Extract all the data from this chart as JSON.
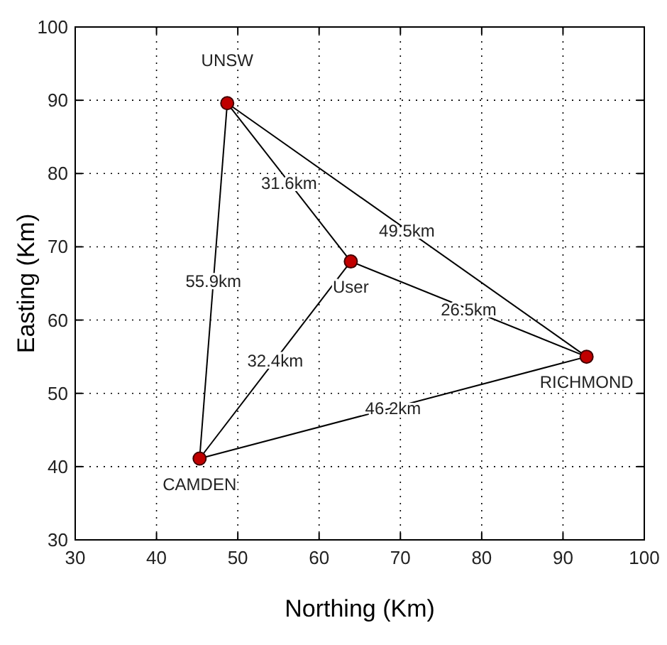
{
  "chart_data": {
    "type": "scatter",
    "xlabel": "Northing (Km)",
    "ylabel": "Easting (Km)",
    "xlim": [
      30,
      100
    ],
    "xticks": [
      30,
      40,
      50,
      60,
      70,
      80,
      90,
      100
    ],
    "ylim": [
      30,
      100
    ],
    "yticks": [
      30,
      40,
      50,
      60,
      70,
      80,
      90,
      100
    ],
    "grid": true,
    "series": [
      {
        "type": "line",
        "color": "#000000",
        "x": [
          48.7,
          92.9
        ],
        "values": [
          89.6,
          55.0
        ]
      },
      {
        "type": "line",
        "color": "#000000",
        "x": [
          92.9,
          45.3
        ],
        "values": [
          55.0,
          41.1
        ]
      },
      {
        "type": "line",
        "color": "#000000",
        "x": [
          45.3,
          48.7
        ],
        "values": [
          41.1,
          89.6
        ]
      },
      {
        "type": "line",
        "color": "#000000",
        "x": [
          48.7,
          63.9
        ],
        "values": [
          89.6,
          68.0
        ]
      },
      {
        "type": "line",
        "color": "#000000",
        "x": [
          92.9,
          63.9
        ],
        "values": [
          55.0,
          68.0
        ]
      },
      {
        "type": "line",
        "color": "#000000",
        "x": [
          45.3,
          63.9
        ],
        "values": [
          41.1,
          68.0
        ]
      },
      {
        "color": "#c00000",
        "marker": "circle",
        "x": [
          48.7,
          63.9,
          92.9,
          45.3
        ],
        "values": [
          89.6,
          68.0,
          55.0,
          41.1
        ]
      }
    ],
    "annotations": [
      {
        "text": "UNSW",
        "x": 48.7,
        "y": 89.6
      },
      {
        "text": "User",
        "x": 63.9,
        "y": 68.0
      },
      {
        "text": "RICHMOND",
        "x": 92.9,
        "y": 55.0
      },
      {
        "text": "CAMDEN",
        "x": 45.3,
        "y": 41.1
      },
      {
        "text": "31.6km",
        "x": 56.3,
        "y": 78.8
      },
      {
        "text": "49.5km",
        "x": 70.8,
        "y": 72.3
      },
      {
        "text": "55.9km",
        "x": 47,
        "y": 65.35
      },
      {
        "text": "26.5km",
        "x": 78.4,
        "y": 61.5
      },
      {
        "text": "32.4km",
        "x": 54.6,
        "y": 54.55
      },
      {
        "text": "46.2km",
        "x": 69.1,
        "y": 48.05
      }
    ]
  }
}
